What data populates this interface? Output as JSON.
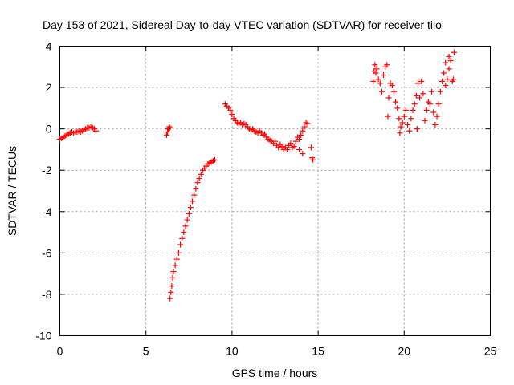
{
  "chart_data": {
    "type": "scatter",
    "title": "Day 153 of 2021, Sidereal Day-to-day VTEC variation (SDTVAR) for receiver tilo",
    "xlabel": "GPS time / hours",
    "ylabel": "SDTVAR / TECUs",
    "xlim": [
      0,
      25
    ],
    "ylim": [
      -10,
      4
    ],
    "xticks": [
      0,
      5,
      10,
      15,
      20,
      25
    ],
    "yticks": [
      -10,
      -8,
      -6,
      -4,
      -2,
      0,
      2,
      4
    ],
    "xtick_labels": [
      "0",
      "5",
      "10",
      "15",
      "20",
      "25"
    ],
    "ytick_labels": [
      "-10",
      "-8",
      "-6",
      "-4",
      "-2",
      "0",
      "2",
      "4"
    ],
    "grid": true,
    "marker": "+",
    "color": "#ff0000",
    "series": [
      {
        "name": "SDTVAR",
        "points": [
          [
            0.0,
            -0.5
          ],
          [
            0.1,
            -0.45
          ],
          [
            0.2,
            -0.4
          ],
          [
            0.3,
            -0.35
          ],
          [
            0.4,
            -0.3
          ],
          [
            0.5,
            -0.25
          ],
          [
            0.6,
            -0.2
          ],
          [
            0.7,
            -0.15
          ],
          [
            0.8,
            -0.2
          ],
          [
            0.9,
            -0.15
          ],
          [
            1.0,
            -0.15
          ],
          [
            1.1,
            -0.1
          ],
          [
            1.2,
            -0.15
          ],
          [
            1.3,
            -0.1
          ],
          [
            1.4,
            -0.05
          ],
          [
            1.5,
            0.0
          ],
          [
            1.6,
            0.05
          ],
          [
            1.7,
            0.05
          ],
          [
            1.8,
            0.1
          ],
          [
            1.9,
            0.05
          ],
          [
            2.0,
            0.0
          ],
          [
            2.1,
            -0.1
          ],
          [
            6.2,
            -0.3
          ],
          [
            6.25,
            -0.15
          ],
          [
            6.3,
            0.0
          ],
          [
            6.35,
            0.1
          ],
          [
            6.4,
            0.05
          ],
          [
            6.4,
            -8.2
          ],
          [
            6.45,
            -7.9
          ],
          [
            6.5,
            -7.6
          ],
          [
            6.55,
            -7.2
          ],
          [
            6.6,
            -6.9
          ],
          [
            6.7,
            -6.6
          ],
          [
            6.8,
            -6.3
          ],
          [
            6.9,
            -6.0
          ],
          [
            7.0,
            -5.6
          ],
          [
            7.1,
            -5.3
          ],
          [
            7.2,
            -5.0
          ],
          [
            7.3,
            -4.7
          ],
          [
            7.4,
            -4.4
          ],
          [
            7.5,
            -4.1
          ],
          [
            7.6,
            -3.8
          ],
          [
            7.7,
            -3.5
          ],
          [
            7.8,
            -3.2
          ],
          [
            7.9,
            -2.9
          ],
          [
            8.0,
            -2.6
          ],
          [
            8.1,
            -2.4
          ],
          [
            8.2,
            -2.2
          ],
          [
            8.3,
            -2.0
          ],
          [
            8.4,
            -1.9
          ],
          [
            8.5,
            -1.8
          ],
          [
            8.6,
            -1.7
          ],
          [
            8.7,
            -1.65
          ],
          [
            8.8,
            -1.6
          ],
          [
            8.9,
            -1.55
          ],
          [
            9.0,
            -1.5
          ],
          [
            9.6,
            1.2
          ],
          [
            9.7,
            1.1
          ],
          [
            9.8,
            1.0
          ],
          [
            9.9,
            0.9
          ],
          [
            10.0,
            0.7
          ],
          [
            10.1,
            0.5
          ],
          [
            10.2,
            0.4
          ],
          [
            10.3,
            0.3
          ],
          [
            10.4,
            0.25
          ],
          [
            10.5,
            0.3
          ],
          [
            10.6,
            0.2
          ],
          [
            10.7,
            0.25
          ],
          [
            10.8,
            0.2
          ],
          [
            10.9,
            0.1
          ],
          [
            11.0,
            0.0
          ],
          [
            11.1,
            -0.05
          ],
          [
            11.2,
            0.0
          ],
          [
            11.3,
            -0.1
          ],
          [
            11.4,
            -0.15
          ],
          [
            11.5,
            -0.2
          ],
          [
            11.6,
            -0.1
          ],
          [
            11.7,
            -0.2
          ],
          [
            11.8,
            -0.3
          ],
          [
            11.9,
            -0.25
          ],
          [
            12.0,
            -0.4
          ],
          [
            12.1,
            -0.5
          ],
          [
            12.2,
            -0.55
          ],
          [
            12.3,
            -0.6
          ],
          [
            12.4,
            -0.7
          ],
          [
            12.5,
            -0.6
          ],
          [
            12.6,
            -0.8
          ],
          [
            12.7,
            -0.9
          ],
          [
            12.8,
            -0.75
          ],
          [
            12.9,
            -0.85
          ],
          [
            13.0,
            -1.0
          ],
          [
            13.1,
            -0.9
          ],
          [
            13.2,
            -1.0
          ],
          [
            13.3,
            -0.8
          ],
          [
            13.4,
            -0.7
          ],
          [
            13.5,
            -0.9
          ],
          [
            13.6,
            -0.85
          ],
          [
            13.7,
            -0.6
          ],
          [
            13.8,
            -0.4
          ],
          [
            13.9,
            -0.5
          ],
          [
            14.0,
            -0.3
          ],
          [
            14.1,
            -0.1
          ],
          [
            14.2,
            0.1
          ],
          [
            14.3,
            0.3
          ],
          [
            14.4,
            0.25
          ],
          [
            13.9,
            -1.0
          ],
          [
            14.1,
            -1.2
          ],
          [
            14.6,
            -0.9
          ],
          [
            14.65,
            -1.4
          ],
          [
            14.7,
            -1.5
          ],
          [
            18.2,
            2.3
          ],
          [
            18.25,
            2.8
          ],
          [
            18.3,
            3.1
          ],
          [
            18.35,
            2.7
          ],
          [
            18.4,
            2.9
          ],
          [
            18.5,
            2.4
          ],
          [
            18.6,
            2.2
          ],
          [
            18.7,
            1.8
          ],
          [
            18.8,
            2.6
          ],
          [
            18.9,
            3.0
          ],
          [
            19.0,
            3.1
          ],
          [
            19.05,
            0.6
          ],
          [
            19.1,
            1.5
          ],
          [
            19.2,
            2.2
          ],
          [
            19.3,
            2.1
          ],
          [
            19.4,
            1.8
          ],
          [
            19.5,
            1.3
          ],
          [
            19.6,
            1.0
          ],
          [
            19.7,
            0.5
          ],
          [
            19.75,
            -0.2
          ],
          [
            19.8,
            0.1
          ],
          [
            19.9,
            0.3
          ],
          [
            20.0,
            0.6
          ],
          [
            20.1,
            0.9
          ],
          [
            20.2,
            0.2
          ],
          [
            20.3,
            -0.1
          ],
          [
            20.4,
            0.5
          ],
          [
            20.5,
            0.9
          ],
          [
            20.6,
            1.2
          ],
          [
            20.7,
            1.6
          ],
          [
            20.75,
            0.0
          ],
          [
            20.8,
            2.2
          ],
          [
            20.9,
            1.5
          ],
          [
            21.0,
            2.3
          ],
          [
            21.1,
            1.7
          ],
          [
            21.2,
            0.4
          ],
          [
            21.3,
            0.9
          ],
          [
            21.4,
            1.3
          ],
          [
            21.5,
            1.2
          ],
          [
            21.6,
            1.8
          ],
          [
            21.7,
            0.8
          ],
          [
            21.8,
            0.2
          ],
          [
            21.9,
            0.6
          ],
          [
            22.0,
            1.2
          ],
          [
            22.1,
            1.8
          ],
          [
            22.2,
            2.3
          ],
          [
            22.3,
            2.7
          ],
          [
            22.4,
            2.1
          ],
          [
            22.5,
            2.4
          ],
          [
            22.6,
            2.9
          ],
          [
            22.7,
            3.3
          ],
          [
            22.8,
            2.3
          ],
          [
            22.9,
            3.7
          ],
          [
            22.85,
            2.4
          ],
          [
            22.6,
            3.5
          ],
          [
            22.4,
            3.2
          ]
        ]
      }
    ]
  }
}
